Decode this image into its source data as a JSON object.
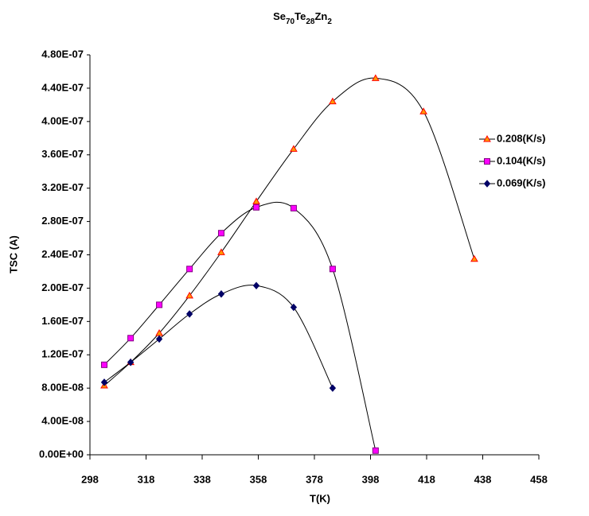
{
  "chart_data": {
    "type": "line",
    "title": "Se70Te28Zn2",
    "x_label": "T(K)",
    "y_label": "TSC (A)",
    "xlim": [
      298,
      458
    ],
    "xticks": [
      298,
      318,
      338,
      358,
      378,
      398,
      418,
      438,
      458
    ],
    "ylim": [
      0,
      4.8e-07
    ],
    "yticks": [
      {
        "value": 0,
        "label": "0.00E+00"
      },
      {
        "value": 4e-08,
        "label": "4.00E-08"
      },
      {
        "value": 8e-08,
        "label": "8.00E-08"
      },
      {
        "value": 1.2e-07,
        "label": "1.20E-07"
      },
      {
        "value": 1.6e-07,
        "label": "1.60E-07"
      },
      {
        "value": 2e-07,
        "label": "2.00E-07"
      },
      {
        "value": 2.4e-07,
        "label": "2.40E-07"
      },
      {
        "value": 2.8e-07,
        "label": "2.80E-07"
      },
      {
        "value": 3.2e-07,
        "label": "3.20E-07"
      },
      {
        "value": 3.6e-07,
        "label": "3.60E-07"
      },
      {
        "value": 4e-07,
        "label": "4.00E-07"
      },
      {
        "value": 4.4e-07,
        "label": "4.40E-07"
      },
      {
        "value": 4.8e-07,
        "label": "4.80E-07"
      }
    ],
    "grid": false,
    "legend": "right",
    "series": [
      {
        "name": "0.208(K/s)",
        "color": "#ff9900",
        "marker": "triangle",
        "x": [
          303.1,
          312.5,
          322.7,
          333.5,
          344.8,
          357.3,
          370.6,
          384.5,
          399.8,
          416.9,
          435.0
        ],
        "values": [
          8.3e-08,
          1.11e-07,
          1.46e-07,
          1.91e-07,
          2.43e-07,
          3.04e-07,
          3.67e-07,
          4.24e-07,
          4.52e-07,
          4.12e-07,
          2.35e-07
        ]
      },
      {
        "name": "0.104(K/s)",
        "color": "#ff00ff",
        "marker": "square",
        "x": [
          303.1,
          312.5,
          322.7,
          333.5,
          344.8,
          357.3,
          370.6,
          384.5,
          399.8
        ],
        "values": [
          1.08e-07,
          1.4e-07,
          1.8e-07,
          2.23e-07,
          2.66e-07,
          2.97e-07,
          2.96e-07,
          2.23e-07,
          5e-09
        ]
      },
      {
        "name": "0.069(K/s)",
        "color": "#000066",
        "marker": "diamond",
        "x": [
          303.1,
          312.5,
          322.7,
          333.5,
          344.8,
          357.3,
          370.6,
          384.5
        ],
        "values": [
          8.7e-08,
          1.11e-07,
          1.39e-07,
          1.69e-07,
          1.93e-07,
          2.03e-07,
          1.77e-07,
          8e-08
        ]
      }
    ]
  }
}
